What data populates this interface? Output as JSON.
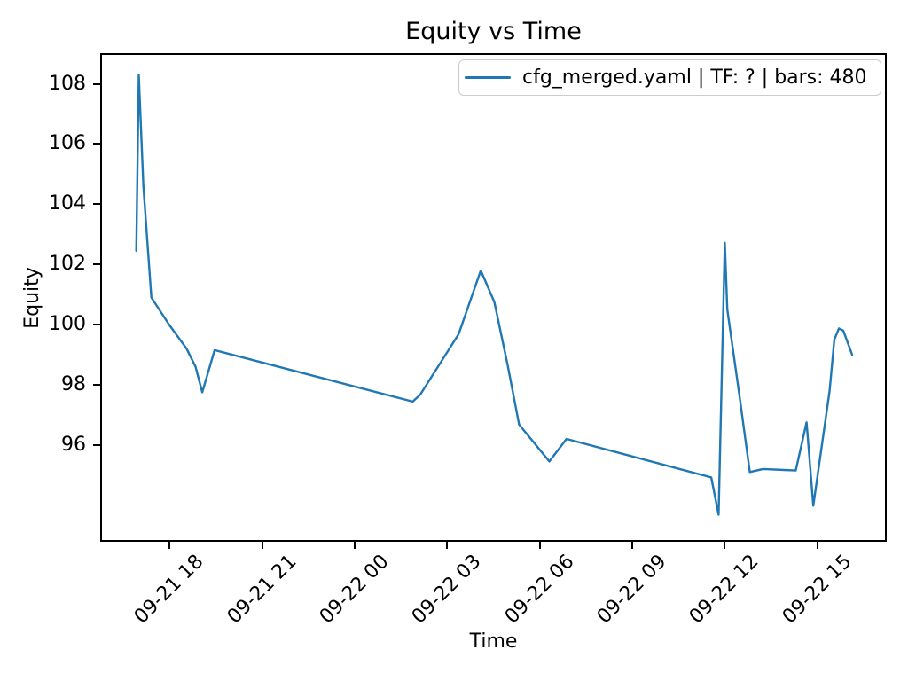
{
  "figure": {
    "background": "#ffffff",
    "text_color": "#000000",
    "spine_color": "#000000"
  },
  "chart_data": {
    "type": "line",
    "title": "Equity vs Time",
    "xlabel": "Time",
    "ylabel": "Equity",
    "grid": false,
    "legend_position": "upper right",
    "x_unit": "hours since 09-21 00:00",
    "xlim": [
      15.75,
      41.25
    ],
    "ylim": [
      92.78,
      109.02
    ],
    "xticks": [
      {
        "value": 18,
        "label": "09-21 18"
      },
      {
        "value": 21,
        "label": "09-21 21"
      },
      {
        "value": 24,
        "label": "09-22 00"
      },
      {
        "value": 27,
        "label": "09-22 03"
      },
      {
        "value": 30,
        "label": "09-22 06"
      },
      {
        "value": 33,
        "label": "09-22 09"
      },
      {
        "value": 36,
        "label": "09-22 12"
      },
      {
        "value": 39,
        "label": "09-22 15"
      }
    ],
    "yticks": [
      96,
      98,
      100,
      102,
      104,
      106,
      108
    ],
    "series": [
      {
        "name": "cfg_merged.yaml | TF: ? | bars: 480",
        "color": "#1f77b4",
        "line_width": 2.4,
        "points": [
          [
            16.92,
            102.45
          ],
          [
            17.0,
            108.3
          ],
          [
            17.15,
            104.6
          ],
          [
            17.41,
            100.9
          ],
          [
            17.98,
            100.0
          ],
          [
            18.55,
            99.2
          ],
          [
            18.84,
            98.6
          ],
          [
            19.06,
            97.75
          ],
          [
            19.46,
            99.15
          ],
          [
            25.88,
            97.44
          ],
          [
            26.12,
            97.66
          ],
          [
            27.37,
            99.68
          ],
          [
            28.09,
            101.8
          ],
          [
            28.53,
            100.75
          ],
          [
            28.96,
            98.65
          ],
          [
            29.33,
            96.68
          ],
          [
            30.31,
            95.45
          ],
          [
            30.87,
            96.2
          ],
          [
            35.56,
            94.92
          ],
          [
            35.8,
            93.68
          ],
          [
            36.0,
            102.72
          ],
          [
            36.08,
            100.5
          ],
          [
            36.48,
            97.6
          ],
          [
            36.81,
            95.1
          ],
          [
            37.24,
            95.2
          ],
          [
            38.3,
            95.15
          ],
          [
            38.65,
            96.75
          ],
          [
            38.87,
            93.98
          ],
          [
            39.4,
            97.8
          ],
          [
            39.55,
            99.5
          ],
          [
            39.7,
            99.87
          ],
          [
            39.84,
            99.8
          ],
          [
            40.13,
            99.0
          ]
        ]
      }
    ]
  }
}
